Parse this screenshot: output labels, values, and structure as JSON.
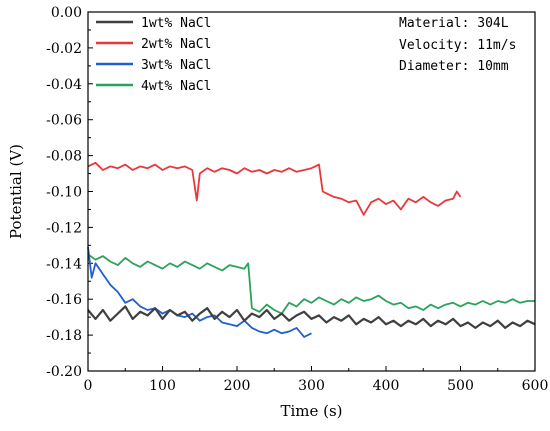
{
  "chart_data": {
    "type": "line",
    "xlabel": "Time (s)",
    "ylabel": "Potential (V)",
    "xlim": [
      0,
      600
    ],
    "ylim": [
      -0.2,
      0.0
    ],
    "x_ticks": [
      "0",
      "100",
      "200",
      "300",
      "400",
      "500",
      "600"
    ],
    "y_ticks": [
      "0.00",
      "-0.02",
      "-0.04",
      "-0.06",
      "-0.08",
      "-0.10",
      "-0.12",
      "-0.14",
      "-0.16",
      "-0.18",
      "-0.20"
    ],
    "grid": false,
    "legend_position": "top-left",
    "annotations": [
      "Material: 304L",
      "Velocity: 11m/s",
      "Diameter: 10mm"
    ],
    "series": [
      {
        "name": "1wt% NaCl",
        "color": "#404040",
        "x": [
          0,
          10,
          20,
          30,
          40,
          50,
          60,
          70,
          80,
          90,
          100,
          110,
          120,
          130,
          140,
          150,
          160,
          170,
          180,
          190,
          200,
          210,
          220,
          230,
          240,
          250,
          260,
          270,
          280,
          290,
          300,
          310,
          320,
          330,
          340,
          350,
          360,
          370,
          380,
          390,
          400,
          410,
          420,
          430,
          440,
          450,
          460,
          470,
          480,
          490,
          500,
          510,
          520,
          530,
          540,
          550,
          560,
          570,
          580,
          590,
          600
        ],
        "y": [
          -0.166,
          -0.171,
          -0.166,
          -0.172,
          -0.168,
          -0.164,
          -0.171,
          -0.167,
          -0.169,
          -0.165,
          -0.171,
          -0.166,
          -0.169,
          -0.167,
          -0.172,
          -0.168,
          -0.165,
          -0.171,
          -0.167,
          -0.17,
          -0.166,
          -0.172,
          -0.168,
          -0.17,
          -0.166,
          -0.171,
          -0.168,
          -0.172,
          -0.169,
          -0.167,
          -0.171,
          -0.169,
          -0.173,
          -0.17,
          -0.172,
          -0.169,
          -0.174,
          -0.171,
          -0.173,
          -0.17,
          -0.174,
          -0.172,
          -0.175,
          -0.172,
          -0.174,
          -0.171,
          -0.175,
          -0.172,
          -0.174,
          -0.171,
          -0.175,
          -0.173,
          -0.176,
          -0.173,
          -0.175,
          -0.172,
          -0.176,
          -0.173,
          -0.175,
          -0.172,
          -0.174
        ]
      },
      {
        "name": "2wt% NaCl",
        "color": "#e8383b",
        "x": [
          0,
          10,
          20,
          30,
          40,
          50,
          60,
          70,
          80,
          90,
          100,
          110,
          120,
          130,
          140,
          146,
          150,
          160,
          170,
          180,
          190,
          200,
          210,
          220,
          230,
          240,
          250,
          260,
          270,
          280,
          290,
          300,
          310,
          315,
          320,
          330,
          340,
          350,
          360,
          370,
          380,
          390,
          400,
          410,
          420,
          430,
          440,
          450,
          460,
          470,
          480,
          490,
          495,
          500
        ],
        "y": [
          -0.086,
          -0.084,
          -0.088,
          -0.086,
          -0.087,
          -0.085,
          -0.088,
          -0.086,
          -0.087,
          -0.085,
          -0.088,
          -0.086,
          -0.087,
          -0.086,
          -0.088,
          -0.105,
          -0.09,
          -0.087,
          -0.089,
          -0.087,
          -0.088,
          -0.09,
          -0.087,
          -0.089,
          -0.088,
          -0.09,
          -0.088,
          -0.089,
          -0.087,
          -0.089,
          -0.088,
          -0.087,
          -0.085,
          -0.1,
          -0.101,
          -0.103,
          -0.104,
          -0.106,
          -0.105,
          -0.113,
          -0.106,
          -0.104,
          -0.107,
          -0.105,
          -0.11,
          -0.104,
          -0.106,
          -0.103,
          -0.106,
          -0.108,
          -0.105,
          -0.104,
          -0.1,
          -0.103
        ]
      },
      {
        "name": "3wt% NaCl",
        "color": "#1f5fd0",
        "x": [
          0,
          5,
          10,
          20,
          30,
          40,
          50,
          60,
          70,
          80,
          90,
          100,
          110,
          120,
          130,
          140,
          150,
          160,
          170,
          180,
          190,
          200,
          210,
          220,
          230,
          240,
          250,
          260,
          270,
          280,
          290,
          300
        ],
        "y": [
          -0.131,
          -0.148,
          -0.14,
          -0.146,
          -0.152,
          -0.156,
          -0.162,
          -0.16,
          -0.164,
          -0.166,
          -0.165,
          -0.168,
          -0.166,
          -0.169,
          -0.17,
          -0.168,
          -0.172,
          -0.17,
          -0.169,
          -0.173,
          -0.174,
          -0.175,
          -0.172,
          -0.176,
          -0.178,
          -0.179,
          -0.177,
          -0.179,
          -0.178,
          -0.176,
          -0.181,
          -0.179
        ]
      },
      {
        "name": "4wt% NaCl",
        "color": "#2aa35a",
        "x": [
          0,
          10,
          20,
          30,
          40,
          50,
          60,
          70,
          80,
          90,
          100,
          110,
          120,
          130,
          140,
          150,
          160,
          170,
          180,
          190,
          200,
          210,
          215,
          220,
          230,
          240,
          250,
          260,
          270,
          280,
          290,
          300,
          310,
          320,
          330,
          340,
          350,
          360,
          370,
          380,
          390,
          400,
          410,
          420,
          430,
          440,
          450,
          460,
          470,
          480,
          490,
          500,
          510,
          520,
          530,
          540,
          550,
          560,
          570,
          580,
          590,
          600
        ],
        "y": [
          -0.135,
          -0.138,
          -0.136,
          -0.139,
          -0.141,
          -0.137,
          -0.14,
          -0.142,
          -0.139,
          -0.141,
          -0.143,
          -0.14,
          -0.142,
          -0.139,
          -0.141,
          -0.143,
          -0.14,
          -0.142,
          -0.144,
          -0.141,
          -0.142,
          -0.143,
          -0.14,
          -0.165,
          -0.167,
          -0.163,
          -0.166,
          -0.168,
          -0.162,
          -0.164,
          -0.16,
          -0.162,
          -0.159,
          -0.161,
          -0.163,
          -0.16,
          -0.162,
          -0.159,
          -0.161,
          -0.16,
          -0.158,
          -0.161,
          -0.163,
          -0.162,
          -0.165,
          -0.164,
          -0.166,
          -0.163,
          -0.165,
          -0.163,
          -0.162,
          -0.164,
          -0.162,
          -0.163,
          -0.161,
          -0.163,
          -0.161,
          -0.162,
          -0.16,
          -0.162,
          -0.161,
          -0.161
        ]
      }
    ]
  }
}
